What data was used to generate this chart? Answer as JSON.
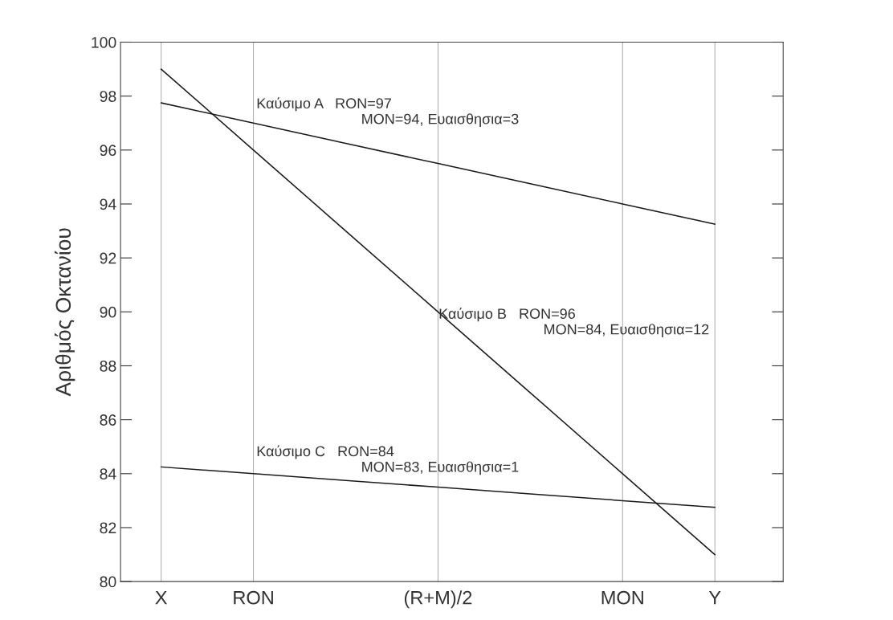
{
  "chart_data": {
    "type": "line",
    "ylabel": "Αριθμός Οκτανίου",
    "categories": [
      "X",
      "RON",
      null,
      "(R+M)/2",
      null,
      "MON",
      "Y"
    ],
    "ylim": [
      80,
      100
    ],
    "yticks": [
      80,
      82,
      84,
      86,
      88,
      90,
      92,
      94,
      96,
      98,
      100
    ],
    "grid": "x",
    "marker": "none",
    "line_style": "solid",
    "series": [
      {
        "color": "#1a1a1a",
        "values": [
          97.75,
          97,
          96.25,
          95.5,
          94.75,
          94,
          93.25
        ]
      },
      {
        "color": "#1a1a1a",
        "values": [
          99,
          96,
          93,
          90,
          87,
          84,
          81
        ]
      },
      {
        "color": "#1a1a1a",
        "values": [
          84.25,
          84,
          83.75,
          83.5,
          83.25,
          83,
          82.75
        ]
      }
    ],
    "annotations": [
      "Καύσιμο A   RON=97\n                          MON=94, Ευαισθησια=3",
      "Καύσιμο B   RON=96\n                          MON=84, Ευαισθησια=12",
      "Καύσιμο C   RON=84\n                          MON=83, Ευαισθησια=1"
    ]
  }
}
